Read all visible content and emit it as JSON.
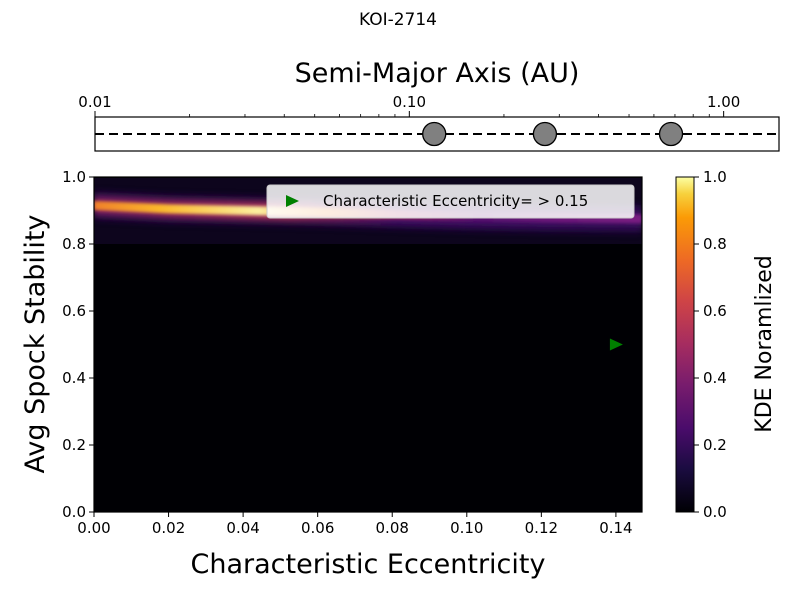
{
  "chart_data": [
    {
      "type": "scatter",
      "subtype": "orbit-strip",
      "title": "KOI-2714",
      "xlabel": "Semi-Major Axis (AU)",
      "x_scale": "log",
      "xlim": [
        0.01,
        1.5
      ],
      "xticks": [
        0.01,
        0.1,
        1.0
      ],
      "xtick_labels": [
        "0.01",
        "0.10",
        "1.00"
      ],
      "planets_au": [
        0.12,
        0.27,
        0.68
      ],
      "planet_color": "#808080",
      "line_style": "dashed"
    },
    {
      "type": "heatmap",
      "xlabel": "Characteristic Eccentricity",
      "ylabel": "Avg Spock Stability",
      "xlim": [
        0.0,
        0.147
      ],
      "ylim": [
        0.0,
        1.0
      ],
      "xticks": [
        0.0,
        0.02,
        0.04,
        0.06,
        0.08,
        0.1,
        0.12,
        0.14
      ],
      "xtick_labels": [
        "0.00",
        "0.02",
        "0.04",
        "0.06",
        "0.08",
        "0.10",
        "0.12",
        "0.14"
      ],
      "yticks": [
        0.0,
        0.2,
        0.4,
        0.6,
        0.8,
        1.0
      ],
      "ytick_labels": [
        "0.0",
        "0.2",
        "0.4",
        "0.6",
        "0.8",
        "1.0"
      ],
      "colormap": "inferno",
      "colorbar_label": "KDE Noramlized",
      "colorbar_ticks": [
        "0.0",
        "0.2",
        "0.4",
        "0.6",
        "0.8",
        "1.0"
      ],
      "kde_ridge": {
        "x": [
          0.0,
          0.02,
          0.04,
          0.06,
          0.08,
          0.1,
          0.12,
          0.147
        ],
        "y": [
          0.915,
          0.905,
          0.9,
          0.895,
          0.888,
          0.882,
          0.878,
          0.875
        ],
        "intensity": [
          0.85,
          1.0,
          0.95,
          0.6,
          0.35,
          0.25,
          0.3,
          0.35
        ]
      },
      "marker": {
        "x": 0.14,
        "y": 0.5,
        "color": "#008000",
        "shape": "triangle-right"
      },
      "legend": {
        "label": "Characteristic Eccentricity= > 0.15",
        "position": "upper-right"
      }
    }
  ]
}
